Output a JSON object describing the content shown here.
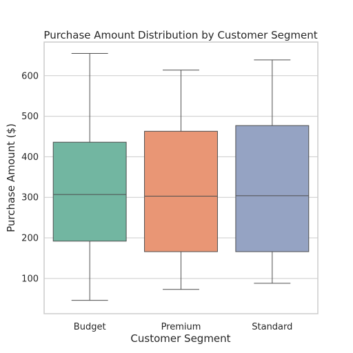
{
  "chart_data": {
    "type": "box",
    "title": "Purchase Amount Distribution by Customer Segment",
    "xlabel": "Customer Segment",
    "ylabel": "Purchase Amount ($)",
    "ylim": [
      13,
      683
    ],
    "yticks": [
      100,
      200,
      300,
      400,
      500,
      600
    ],
    "grid": true,
    "categories": [
      "Budget",
      "Premium",
      "Standard"
    ],
    "boxes": [
      {
        "category": "Budget",
        "min": 46,
        "q1": 192,
        "median": 307,
        "q3": 436,
        "max": 655,
        "color": "#72b6a1"
      },
      {
        "category": "Premium",
        "min": 73,
        "q1": 166,
        "median": 303,
        "q3": 463,
        "max": 614,
        "color": "#e99675"
      },
      {
        "category": "Standard",
        "min": 88,
        "q1": 166,
        "median": 304,
        "q3": 477,
        "max": 639,
        "color": "#95a3c3"
      }
    ]
  }
}
